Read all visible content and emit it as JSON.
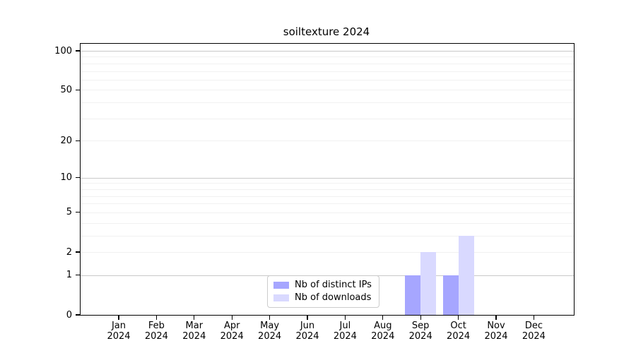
{
  "chart_data": {
    "type": "bar",
    "title": "soiltexture 2024",
    "categories": [
      "Jan 2024",
      "Feb 2024",
      "Mar 2024",
      "Apr 2024",
      "May 2024",
      "Jun 2024",
      "Jul 2024",
      "Aug 2024",
      "Sep 2024",
      "Oct 2024",
      "Nov 2024",
      "Dec 2024"
    ],
    "series": [
      {
        "name": "Nb of distinct IPs",
        "color": "#a6a6ff",
        "values": [
          0,
          0,
          0,
          0,
          0,
          0,
          0,
          0,
          1,
          1,
          0,
          0
        ]
      },
      {
        "name": "Nb of downloads",
        "color": "#d9d9ff",
        "values": [
          0,
          0,
          0,
          0,
          0,
          0,
          0,
          0,
          2,
          3,
          0,
          0
        ]
      }
    ],
    "xlabel": "",
    "ylabel": "",
    "y_scale": "log1p",
    "y_ticks": [
      0,
      1,
      2,
      5,
      10,
      20,
      50,
      100
    ],
    "ylim": [
      0,
      113
    ],
    "grid_major": [
      1,
      10,
      100
    ],
    "grid_minor": [
      2,
      3,
      4,
      5,
      6,
      7,
      8,
      9,
      20,
      30,
      40,
      50,
      60,
      70,
      80,
      90
    ],
    "grid": "on",
    "legend_position": "inside-bottom-center"
  },
  "colors": {
    "distinct_ips": "#a6a6ff",
    "downloads": "#d9d9ff",
    "grid_major": "#c9c9c9",
    "grid_minor": "#f1f1f1",
    "axis": "#000000",
    "legend_border": "#cccccc"
  }
}
